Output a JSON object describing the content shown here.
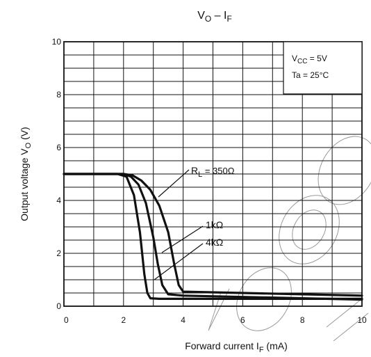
{
  "chart_data": {
    "type": "line",
    "title_main": "V",
    "title_sub1": "O",
    "title_sep": " – I",
    "title_sub2": "F",
    "xlabel_main": "Forward current   I",
    "xlabel_sub": "F",
    "xlabel_unit": "   (mA)",
    "ylabel_main": "Output voltage   V",
    "ylabel_sub": "O",
    "ylabel_unit": "   (V)",
    "xlim": [
      0,
      10
    ],
    "ylim": [
      0,
      10
    ],
    "x_ticks": [
      "0",
      "2",
      "4",
      "6",
      "8",
      "10"
    ],
    "y_ticks": [
      "0",
      "2",
      "4",
      "6",
      "8",
      "10"
    ],
    "grid": true,
    "conditions": {
      "vcc_main": "V",
      "vcc_sub": "CC",
      "vcc_value": " = 5V",
      "ta": "Ta = 25°C"
    },
    "series": [
      {
        "name": "RL = 350Ω",
        "label_main": "R",
        "label_sub": "L",
        "label_value": " = 350Ω",
        "x": [
          0,
          1.0,
          2.0,
          2.3,
          2.6,
          2.9,
          3.2,
          3.5,
          3.7,
          3.85,
          4.0,
          6.0,
          8.0,
          10.0
        ],
        "y": [
          5.0,
          5.0,
          5.0,
          4.95,
          4.75,
          4.4,
          3.8,
          2.8,
          1.6,
          0.8,
          0.55,
          0.5,
          0.45,
          0.4
        ]
      },
      {
        "name": "1kΩ",
        "label_main": "1kΩ",
        "label_sub": "",
        "label_value": "",
        "x": [
          0,
          1.0,
          2.0,
          2.25,
          2.5,
          2.75,
          3.0,
          3.15,
          3.3,
          3.5,
          4.0,
          6.0,
          8.0,
          10.0
        ],
        "y": [
          5.0,
          5.0,
          5.0,
          4.9,
          4.6,
          3.9,
          2.6,
          1.6,
          0.8,
          0.45,
          0.4,
          0.35,
          0.3,
          0.25
        ]
      },
      {
        "name": "4kΩ",
        "label_main": "4kΩ",
        "label_sub": "",
        "label_value": "",
        "x": [
          0,
          1.0,
          1.8,
          2.1,
          2.35,
          2.55,
          2.7,
          2.8,
          2.9,
          3.2,
          4.0,
          6.0,
          8.0,
          10.0
        ],
        "y": [
          5.0,
          5.0,
          5.0,
          4.9,
          4.2,
          2.8,
          1.2,
          0.5,
          0.3,
          0.28,
          0.28,
          0.28,
          0.28,
          0.28
        ]
      }
    ]
  }
}
